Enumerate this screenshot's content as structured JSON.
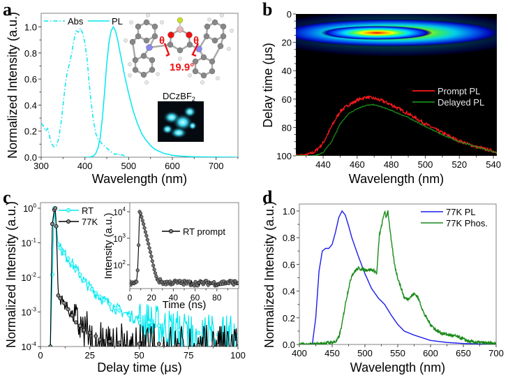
{
  "figure": {
    "panels": [
      "a",
      "b",
      "c",
      "d"
    ]
  },
  "chart_data": [
    {
      "panel": "a",
      "type": "line",
      "title": "",
      "xlabel": "Wavelength (nm)",
      "ylabel": "Normalized Intensity (a.u.)",
      "xlim": [
        300,
        750
      ],
      "ylim": [
        0,
        1.1
      ],
      "xticks": [
        "300",
        "400",
        "500",
        "600",
        "700"
      ],
      "yticks": [
        "0.0",
        "0.2",
        "0.4",
        "0.6",
        "0.8",
        "1.0"
      ],
      "legend": "top-left",
      "series": [
        {
          "name": "Abs",
          "style": "dash-dot",
          "color": "#00e8f0",
          "x": [
            300,
            305,
            310,
            315,
            318,
            322,
            326,
            330,
            335,
            340,
            345,
            350,
            355,
            360,
            365,
            370,
            375,
            380,
            385,
            390,
            395,
            400,
            405,
            410,
            415,
            420,
            425,
            430,
            435,
            440,
            450,
            460,
            470,
            475,
            480,
            485,
            490,
            495,
            500
          ],
          "y": [
            0.26,
            0.24,
            0.2,
            0.22,
            0.18,
            0.12,
            0.09,
            0.08,
            0.09,
            0.14,
            0.25,
            0.4,
            0.55,
            0.66,
            0.72,
            0.8,
            0.9,
            0.97,
            0.96,
            0.99,
            0.95,
            0.88,
            0.75,
            0.56,
            0.4,
            0.27,
            0.18,
            0.14,
            0.12,
            0.1,
            0.07,
            0.04,
            0.02,
            0.03,
            0.01,
            0.02,
            0.01,
            0.0,
            0.01
          ]
        },
        {
          "name": "PL",
          "style": "solid",
          "color": "#00e8f0",
          "x": [
            400,
            410,
            420,
            425,
            430,
            435,
            440,
            445,
            450,
            455,
            460,
            465,
            470,
            475,
            480,
            490,
            500,
            510,
            520,
            530,
            540,
            550,
            560,
            580,
            600,
            620,
            650,
            700,
            750
          ],
          "y": [
            0.0,
            0.0,
            0.01,
            0.03,
            0.07,
            0.15,
            0.3,
            0.5,
            0.72,
            0.88,
            0.97,
            1.0,
            0.97,
            0.9,
            0.81,
            0.64,
            0.49,
            0.36,
            0.26,
            0.18,
            0.13,
            0.09,
            0.06,
            0.03,
            0.015,
            0.008,
            0.003,
            0.001,
            0.0
          ]
        }
      ],
      "annotations": {
        "angle_symbol_left": "θ",
        "angle_symbol_right": "θ",
        "angle_value": "19.9°",
        "molecule_label": "DCzBF",
        "molecule_label_subscript": "2",
        "inset_photo": "blue-emitting powder photo"
      }
    },
    {
      "panel": "b",
      "type": "heatmap",
      "title": "",
      "xlabel": "Wavelength (nm)",
      "ylabel": "Delay time (μs)",
      "xlim": [
        424,
        542
      ],
      "ylim": [
        100,
        0
      ],
      "xticks": [
        "440",
        "460",
        "480",
        "500",
        "520",
        "540"
      ],
      "yticks": [
        "0",
        "20",
        "40",
        "60",
        "80",
        "100"
      ],
      "legend": "middle-right",
      "heatmap": {
        "description": "streak image: emission centered near 465 nm at ~8 μs delay, decaying by ~30 μs",
        "peak_wavelength": 465,
        "peak_delay": 8,
        "colormap": [
          "#000000",
          "#0000c0",
          "#0060ff",
          "#00e0ff",
          "#40ff60",
          "#ffff00",
          "#ff8000",
          "#e00000"
        ]
      },
      "series": [
        {
          "name": "Prompt PL",
          "color": "#ff1a1a",
          "x": [
            424,
            430,
            435,
            440,
            445,
            450,
            455,
            460,
            465,
            470,
            475,
            480,
            490,
            500,
            510,
            520,
            530,
            542
          ],
          "y": [
            0.0,
            0.01,
            0.06,
            0.2,
            0.46,
            0.7,
            0.8,
            0.87,
            0.92,
            0.9,
            0.86,
            0.8,
            0.66,
            0.5,
            0.36,
            0.23,
            0.14,
            0.06
          ]
        },
        {
          "name": "Delayed PL",
          "color": "#1a8a1a",
          "x": [
            424,
            430,
            435,
            440,
            445,
            450,
            455,
            460,
            465,
            470,
            475,
            480,
            490,
            500,
            510,
            520,
            530,
            542
          ],
          "y": [
            0.0,
            0.0,
            0.0,
            0.05,
            0.22,
            0.5,
            0.66,
            0.74,
            0.79,
            0.8,
            0.76,
            0.71,
            0.6,
            0.46,
            0.33,
            0.22,
            0.14,
            0.05
          ]
        }
      ]
    },
    {
      "panel": "c",
      "type": "scatter",
      "title": "",
      "xlabel": "Delay time (μs)",
      "ylabel": "Normalized Intensity (a.u.)",
      "xlim": [
        0,
        100
      ],
      "ylim": [
        0.0001,
        1.3
      ],
      "yscale": "log",
      "xticks": [
        "0",
        "25",
        "50",
        "75",
        "100"
      ],
      "yticks": [
        {
          "base": "10",
          "exp": "0"
        },
        {
          "base": "10",
          "exp": "-1"
        },
        {
          "base": "10",
          "exp": "-2"
        },
        {
          "base": "10",
          "exp": "-3"
        },
        {
          "base": "10",
          "exp": "-4"
        }
      ],
      "legend": "top-left",
      "series": [
        {
          "name": "RT",
          "color": "#00e8f0",
          "x": [
            5,
            6,
            7,
            8,
            9,
            10,
            12,
            14,
            16,
            18,
            20,
            22,
            24,
            26,
            28,
            30,
            32,
            35,
            38,
            40,
            45,
            50,
            55,
            60,
            70,
            80,
            90,
            100
          ],
          "y": [
            0.0001,
            0.012,
            1.0,
            0.3,
            0.09,
            0.07,
            0.05,
            0.035,
            0.025,
            0.017,
            0.012,
            0.008,
            0.006,
            0.0045,
            0.0035,
            0.0028,
            0.0022,
            0.0017,
            0.0013,
            0.0011,
            0.0008,
            0.0006,
            0.0005,
            0.0004,
            0.0003,
            0.00025,
            0.00022,
            0.0002
          ]
        },
        {
          "name": "77K",
          "color": "#000000",
          "x": [
            5,
            6,
            7,
            7.5,
            8,
            9,
            10,
            12,
            14,
            16,
            18,
            20,
            22,
            25,
            28,
            30,
            35,
            40,
            50,
            60,
            70,
            80,
            90,
            100
          ],
          "y": [
            0.0001,
            0.35,
            0.9,
            1.0,
            0.3,
            0.003,
            0.0025,
            0.0018,
            0.0012,
            0.0008,
            0.0005,
            0.0004,
            0.0003,
            0.00025,
            0.0002,
            0.00016,
            0.00014,
            0.00013,
            0.00012,
            0.00012,
            0.00011,
            0.00011,
            0.00011,
            0.0001
          ]
        }
      ],
      "inset": {
        "type": "scatter",
        "xlabel": "Time (ns)",
        "ylabel": "Intensity (a.u.)",
        "xlim": [
          0,
          100
        ],
        "ylim": [
          15,
          14000
        ],
        "yscale": "log",
        "xticks": [
          "0",
          "20",
          "40",
          "60",
          "80"
        ],
        "yticks": [
          {
            "base": "10",
            "exp": "4"
          },
          {
            "base": "10",
            "exp": "3"
          },
          {
            "base": "10",
            "exp": "2"
          }
        ],
        "legend": "top-right",
        "series": [
          {
            "name": "RT prompt",
            "color": "#000000",
            "x": [
              0,
              2,
              4,
              6,
              7,
              7.5,
              8,
              8.5,
              9,
              10,
              11,
              12,
              13,
              14,
              15,
              16,
              17,
              18,
              19,
              20,
              21,
              22,
              23,
              24,
              25,
              27,
              30,
              35,
              40,
              50,
              60,
              70,
              80,
              90,
              100
            ],
            "y": [
              20,
              22,
              19,
              22,
              40,
              120,
              400,
              2000,
              10000,
              8500,
              6000,
              4200,
              3000,
              2000,
              1400,
              950,
              650,
              430,
              290,
              190,
              120,
              80,
              55,
              40,
              30,
              25,
              22,
              21,
              22,
              21,
              20,
              21,
              20,
              22,
              21
            ]
          }
        ]
      }
    },
    {
      "panel": "d",
      "type": "line",
      "title": "",
      "xlabel": "Wavelength (nm)",
      "ylabel": "Normalized Intensity (a.u.)",
      "xlim": [
        400,
        700
      ],
      "ylim": [
        -0.02,
        1.05
      ],
      "xticks": [
        "400",
        "450",
        "500",
        "550",
        "600",
        "650",
        "700"
      ],
      "yticks": [
        "0.0",
        "0.2",
        "0.4",
        "0.6",
        "0.8",
        "1.0"
      ],
      "legend": "top-right",
      "series": [
        {
          "name": "77K PL",
          "color": "#1a1aee",
          "x": [
            400,
            415,
            420,
            425,
            430,
            435,
            440,
            445,
            450,
            455,
            460,
            465,
            470,
            475,
            480,
            490,
            500,
            510,
            520,
            530,
            540,
            550,
            560,
            575,
            600,
            625,
            650,
            700
          ],
          "y": [
            0.0,
            0.0,
            0.01,
            0.2,
            0.55,
            0.7,
            0.72,
            0.72,
            0.75,
            0.84,
            0.95,
            1.0,
            0.97,
            0.89,
            0.8,
            0.66,
            0.53,
            0.42,
            0.35,
            0.3,
            0.22,
            0.15,
            0.1,
            0.07,
            0.03,
            0.015,
            0.007,
            0.0
          ]
        },
        {
          "name": "77K Phos.",
          "color": "#1a8a1a",
          "x": [
            400,
            420,
            440,
            455,
            460,
            465,
            470,
            475,
            480,
            485,
            490,
            500,
            510,
            515,
            518,
            522,
            525,
            530,
            532,
            535,
            540,
            545,
            550,
            560,
            565,
            570,
            575,
            580,
            585,
            590,
            600,
            610,
            620,
            640,
            660,
            700
          ],
          "y": [
            0.0,
            0.0,
            0.01,
            0.02,
            0.05,
            0.15,
            0.3,
            0.42,
            0.52,
            0.55,
            0.57,
            0.56,
            0.56,
            0.55,
            0.53,
            0.82,
            0.88,
            1.0,
            0.95,
            1.0,
            0.78,
            0.6,
            0.5,
            0.35,
            0.34,
            0.36,
            0.38,
            0.36,
            0.3,
            0.23,
            0.15,
            0.1,
            0.08,
            0.06,
            0.02,
            0.005
          ]
        }
      ]
    }
  ]
}
